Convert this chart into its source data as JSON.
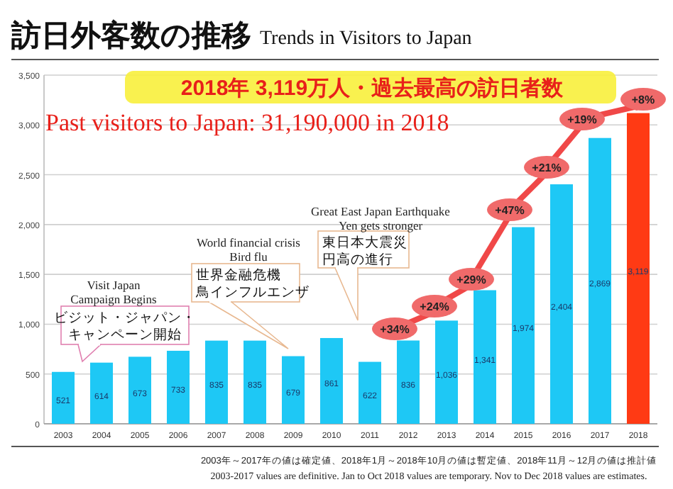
{
  "chart_data": {
    "type": "bar",
    "title": "訪日外客数の推移",
    "subtitle": "Trends in Visitors to Japan",
    "categories": [
      "2003",
      "2004",
      "2005",
      "2006",
      "2007",
      "2008",
      "2009",
      "2010",
      "2011",
      "2012",
      "2013",
      "2014",
      "2015",
      "2016",
      "2017",
      "2018"
    ],
    "values": [
      521,
      614,
      673,
      733,
      835,
      835,
      679,
      861,
      622,
      836,
      1036,
      1341,
      1974,
      2404,
      2869,
      3119
    ],
    "colors": [
      "#1ec8f5",
      "#1ec8f5",
      "#1ec8f5",
      "#1ec8f5",
      "#1ec8f5",
      "#1ec8f5",
      "#1ec8f5",
      "#1ec8f5",
      "#1ec8f5",
      "#1ec8f5",
      "#1ec8f5",
      "#1ec8f5",
      "#1ec8f5",
      "#1ec8f5",
      "#1ec8f5",
      "#ff3a14"
    ],
    "value_labels": [
      "521",
      "614",
      "673",
      "733",
      "835",
      "835",
      "679",
      "861",
      "622",
      "836",
      "1,036",
      "1,341",
      "1,974",
      "2,404",
      "2,869",
      "3,119"
    ],
    "ylim": [
      0,
      3500
    ],
    "yticks": [
      0,
      {
        "value": 500,
        "label": "500"
      },
      {
        "value": 1000,
        "label": "1,000"
      },
      {
        "value": 1500,
        "label": "1,500"
      },
      {
        "value": 2000,
        "label": "2,000"
      },
      {
        "value": 2500,
        "label": "2,500"
      },
      {
        "value": 3000,
        "label": "3,000"
      },
      {
        "value": 3500,
        "label": "3,500"
      }
    ],
    "grid": "y",
    "annotations": [
      "2018年 3,119万人・過去最高の訪日者数",
      "Past visitors to Japan: 31,190,000 in 2018",
      "Visit Japan\nCampaign Begins",
      "ビジット・ジャパン・",
      "キャンペーン開始",
      "World financial crisis\nBird flu",
      "世界金融危機",
      "鳥インフルエンザ",
      "Great East Japan Earthquake\nYen gets stronger",
      "東日本大震災",
      "円高の進行",
      "+34%",
      "+24%",
      "+29%",
      "+47%",
      "+21%",
      "+19%",
      "+8%",
      "2003年～2017年の値は確定値、2018年1月～2018年10月の値は暫定値、2018年11月～12月の値は推計値",
      "2003-2017 values are definitive. Jan to Oct 2018 values are temporary. Nov to Dec 2018 values are estimates."
    ]
  }
}
